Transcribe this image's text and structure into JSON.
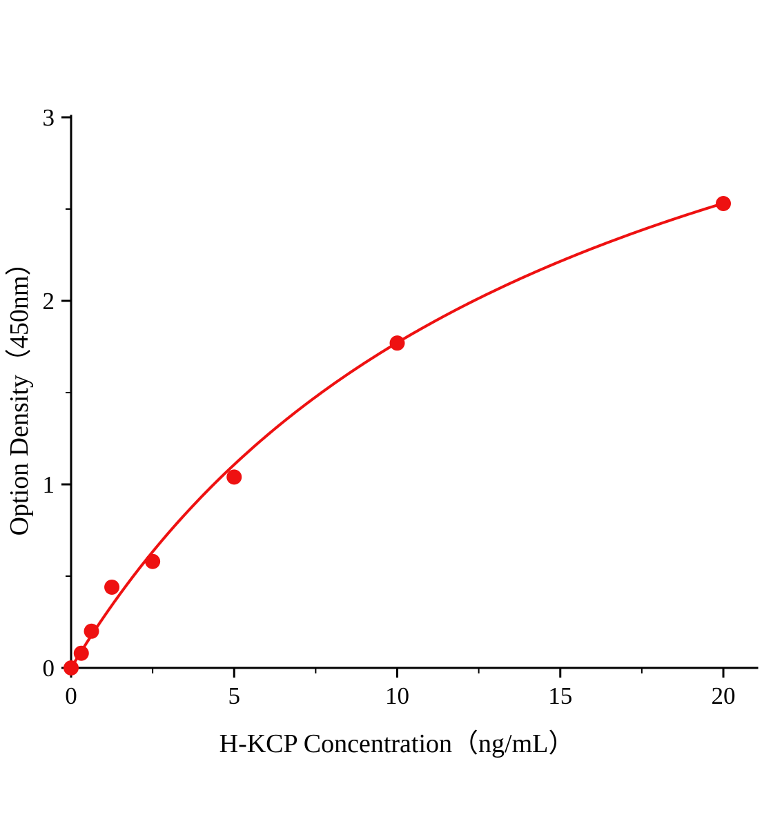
{
  "chart_data": {
    "type": "scatter",
    "title": "",
    "xlabel": "H-KCP Concentration（ng/mL）",
    "ylabel": "Option Density（450nm）",
    "points": [
      {
        "x": 0,
        "y": 0
      },
      {
        "x": 0.313,
        "y": 0.08
      },
      {
        "x": 0.625,
        "y": 0.2
      },
      {
        "x": 1.25,
        "y": 0.44
      },
      {
        "x": 2.5,
        "y": 0.58
      },
      {
        "x": 5,
        "y": 1.04
      },
      {
        "x": 10,
        "y": 1.77
      },
      {
        "x": 20,
        "y": 2.53
      }
    ],
    "x_ticks": [
      0,
      5,
      10,
      15,
      20
    ],
    "y_ticks": [
      0,
      1,
      2,
      3
    ],
    "x_minor_ticks": [
      2.5,
      7.5,
      12.5,
      17.5
    ],
    "y_minor_ticks": [
      0.5,
      1.5,
      2.5
    ],
    "xlim": [
      0,
      21
    ],
    "ylim": [
      0,
      3
    ],
    "grid": "off",
    "legend": "none",
    "fit_curve": {
      "type": "michaelis_menten",
      "vmax": 4.43,
      "km": 15.0,
      "x_start": 0,
      "x_end": 20
    },
    "colors": {
      "curve": "#ee1111",
      "point": "#ee1111",
      "axis": "#000000"
    }
  }
}
